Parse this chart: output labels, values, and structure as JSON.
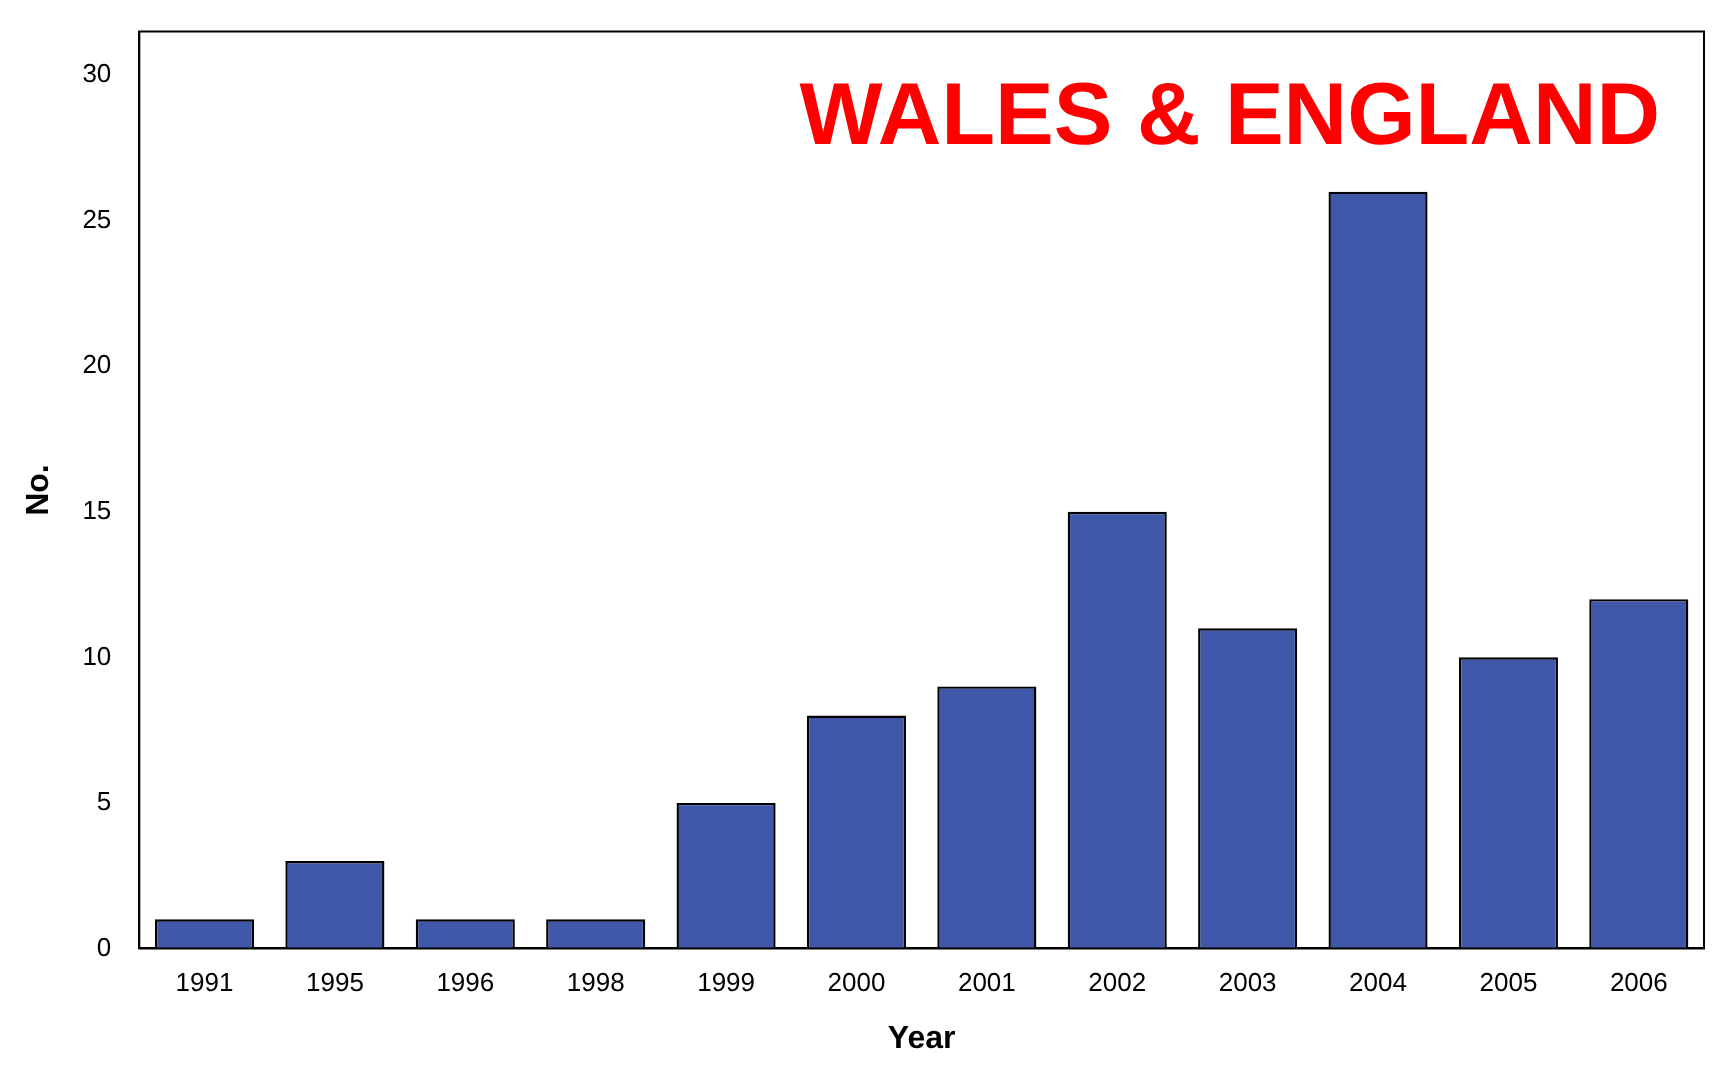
{
  "chart_data": {
    "type": "bar",
    "title": "WALES & ENGLAND",
    "xlabel": "Year",
    "ylabel": "No.",
    "categories": [
      "1991",
      "1995",
      "1996",
      "1998",
      "1999",
      "2000",
      "2001",
      "2002",
      "2003",
      "2004",
      "2005",
      "2006"
    ],
    "values": [
      1,
      3,
      1,
      1,
      5,
      8,
      9,
      15,
      11,
      26,
      10,
      12
    ],
    "color": "#3f57a8",
    "ylim": [
      0,
      31.5
    ],
    "yticks": [
      0,
      5,
      10,
      15,
      20,
      25,
      30
    ],
    "grid": false,
    "legend": false
  }
}
